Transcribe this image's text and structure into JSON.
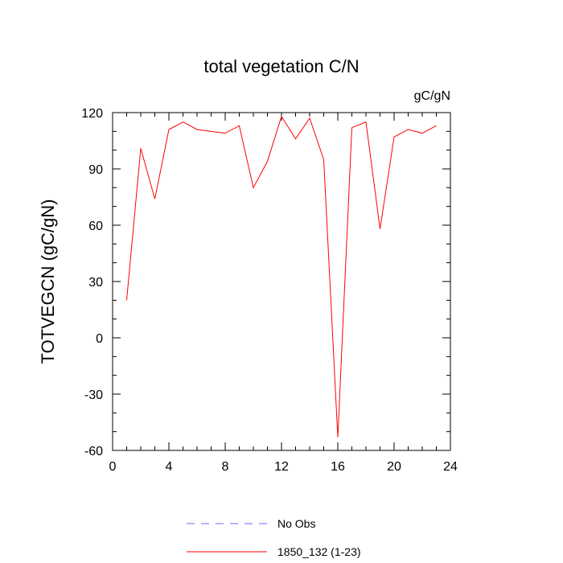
{
  "chart_data": {
    "type": "line",
    "title": "total vegetation C/N",
    "units": "gC/gN",
    "xlabel": "",
    "ylabel": "TOTVEGCN  (gC/gN)",
    "xlim": [
      0,
      24
    ],
    "ylim": [
      -60,
      120
    ],
    "xticks": [
      0,
      4,
      8,
      12,
      16,
      20,
      24
    ],
    "yticks": [
      -60,
      -30,
      0,
      30,
      60,
      90,
      120
    ],
    "xtick_labels": [
      "0",
      "4",
      "8",
      "12",
      "16",
      "20",
      "24"
    ],
    "ytick_labels": [
      "-60",
      "-30",
      "0",
      "30",
      "60",
      "90",
      "120"
    ],
    "grid": false,
    "legend_position": "bottom",
    "series": [
      {
        "name": "No Obs",
        "color": "#6a6aff",
        "style": "dashed",
        "x": [],
        "values": []
      },
      {
        "name": "1850_132 (1-23)",
        "color": "#ff0000",
        "style": "solid",
        "x": [
          1,
          2,
          3,
          4,
          5,
          6,
          7,
          8,
          9,
          10,
          11,
          12,
          13,
          14,
          15,
          16,
          17,
          18,
          19,
          20,
          21,
          22,
          23
        ],
        "values": [
          20,
          101,
          74,
          111,
          115,
          111,
          110,
          109,
          113,
          80,
          94,
          118,
          106,
          117,
          95,
          -53,
          112,
          115,
          58,
          107,
          111,
          109,
          113
        ]
      }
    ]
  }
}
